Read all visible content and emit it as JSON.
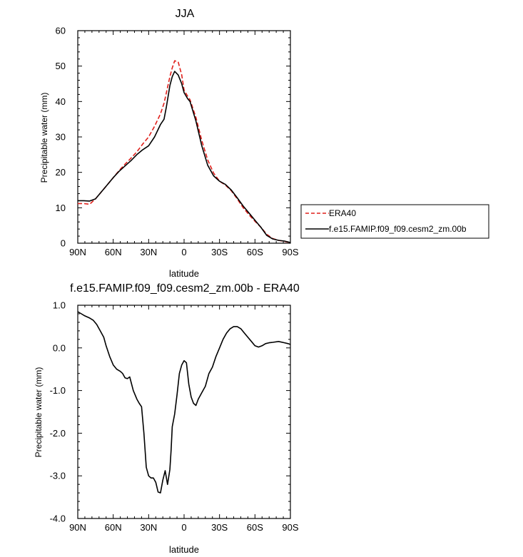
{
  "chart_data": [
    {
      "type": "line",
      "title": "JJA",
      "xlabel": "latitude",
      "ylabel": "Precipitable water (mm)",
      "xlim": [
        90,
        -90
      ],
      "ylim": [
        0,
        60
      ],
      "xticks": [
        90,
        60,
        30,
        0,
        -30,
        -60,
        -90
      ],
      "xticklabels": [
        "90N",
        "60N",
        "30N",
        "0",
        "30S",
        "60S",
        "90S"
      ],
      "yticks": [
        0,
        10,
        20,
        30,
        40,
        50,
        60
      ],
      "yticklabels": [
        "0",
        "10",
        "20",
        "30",
        "40",
        "50",
        "60"
      ],
      "legend": {
        "placement": "right",
        "entries": [
          "ERA40",
          "f.e15.FAMIP.f09_f09.cesm2_zm.00b"
        ]
      },
      "series": [
        {
          "name": "ERA40",
          "color": "#e0201b",
          "dash": "dashed",
          "x": [
            90,
            85,
            80,
            75,
            70,
            65,
            60,
            55,
            50,
            45,
            40,
            35,
            30,
            25,
            20,
            17,
            15,
            12,
            10,
            8,
            5,
            2,
            0,
            -3,
            -5,
            -10,
            -15,
            -20,
            -25,
            -30,
            -35,
            -40,
            -45,
            -50,
            -55,
            -60,
            -65,
            -70,
            -75,
            -80,
            -85,
            -90
          ],
          "y": [
            11.2,
            11.2,
            11.0,
            12.5,
            14.5,
            16.5,
            18.5,
            20.5,
            22.3,
            24.0,
            25.8,
            28.0,
            30.0,
            33.0,
            36.5,
            39.5,
            42.5,
            47.0,
            49.5,
            51.5,
            51.2,
            47.5,
            43.2,
            41.5,
            40.5,
            35.5,
            29.0,
            23.5,
            19.8,
            17.5,
            16.4,
            14.8,
            12.5,
            10.0,
            8.0,
            6.2,
            4.5,
            2.5,
            1.3,
            0.8,
            0.5,
            0.2
          ]
        },
        {
          "name": "f.e15.FAMIP.f09_f09.cesm2_zm.00b",
          "color": "#000000",
          "dash": "solid",
          "x": [
            90,
            85,
            80,
            75,
            70,
            65,
            60,
            55,
            50,
            45,
            40,
            35,
            30,
            25,
            20,
            17,
            15,
            12,
            10,
            8,
            5,
            2,
            0,
            -3,
            -5,
            -10,
            -15,
            -20,
            -25,
            -30,
            -35,
            -40,
            -45,
            -50,
            -55,
            -60,
            -65,
            -70,
            -75,
            -80,
            -85,
            -90
          ],
          "y": [
            12.0,
            12.0,
            11.9,
            12.5,
            14.5,
            16.5,
            18.5,
            20.3,
            21.8,
            23.3,
            25.0,
            26.4,
            27.5,
            30.0,
            33.5,
            35.0,
            38.5,
            44.5,
            47.0,
            48.5,
            47.5,
            45.0,
            42.5,
            40.8,
            40.0,
            34.5,
            27.5,
            22.0,
            19.0,
            17.5,
            16.6,
            15.0,
            12.8,
            10.5,
            8.5,
            6.5,
            4.5,
            2.2,
            1.2,
            0.8,
            0.6,
            0.2
          ]
        }
      ]
    },
    {
      "type": "line",
      "title": "f.e15.FAMIP.f09_f09.cesm2_zm.00b - ERA40",
      "xlabel": "latitude",
      "ylabel": "Precipitable water (mm)",
      "xlim": [
        90,
        -90
      ],
      "ylim": [
        -4,
        1
      ],
      "xticks": [
        90,
        60,
        30,
        0,
        -30,
        -60,
        -90
      ],
      "xticklabels": [
        "90N",
        "60N",
        "30N",
        "0",
        "30S",
        "60S",
        "90S"
      ],
      "yticks": [
        -4,
        -3,
        -2,
        -1,
        0,
        1
      ],
      "yticklabels": [
        "-4.0",
        "-3.0",
        "-2.0",
        "-1.0",
        "0.0",
        "1.0"
      ],
      "series": [
        {
          "color": "#000000",
          "dash": "solid",
          "x": [
            90,
            87,
            84,
            80,
            77,
            74,
            71,
            68,
            66,
            63,
            60,
            57,
            54,
            52,
            50,
            48,
            46,
            43,
            40,
            38,
            36,
            34,
            32,
            30,
            28,
            26,
            24,
            22,
            20,
            18,
            16,
            14,
            12,
            11,
            10,
            8,
            6,
            4,
            2,
            0,
            -2,
            -4,
            -6,
            -8,
            -10,
            -12,
            -15,
            -18,
            -21,
            -24,
            -27,
            -30,
            -33,
            -36,
            -39,
            -42,
            -45,
            -48,
            -51,
            -54,
            -57,
            -60,
            -63,
            -66,
            -69,
            -72,
            -75,
            -80,
            -85,
            -88,
            -90
          ],
          "y": [
            0.85,
            0.8,
            0.75,
            0.7,
            0.65,
            0.55,
            0.4,
            0.25,
            0.05,
            -0.2,
            -0.4,
            -0.5,
            -0.55,
            -0.6,
            -0.7,
            -0.72,
            -0.68,
            -1.0,
            -1.2,
            -1.3,
            -1.38,
            -2.0,
            -2.8,
            -3.0,
            -3.05,
            -3.05,
            -3.15,
            -3.38,
            -3.4,
            -3.1,
            -2.88,
            -3.2,
            -2.85,
            -2.4,
            -1.85,
            -1.55,
            -1.1,
            -0.6,
            -0.4,
            -0.3,
            -0.35,
            -0.85,
            -1.15,
            -1.3,
            -1.35,
            -1.2,
            -1.05,
            -0.9,
            -0.6,
            -0.45,
            -0.2,
            0.0,
            0.2,
            0.35,
            0.45,
            0.5,
            0.5,
            0.45,
            0.35,
            0.25,
            0.15,
            0.05,
            0.02,
            0.05,
            0.1,
            0.12,
            0.13,
            0.15,
            0.12,
            0.1,
            0.08
          ]
        }
      ]
    }
  ]
}
